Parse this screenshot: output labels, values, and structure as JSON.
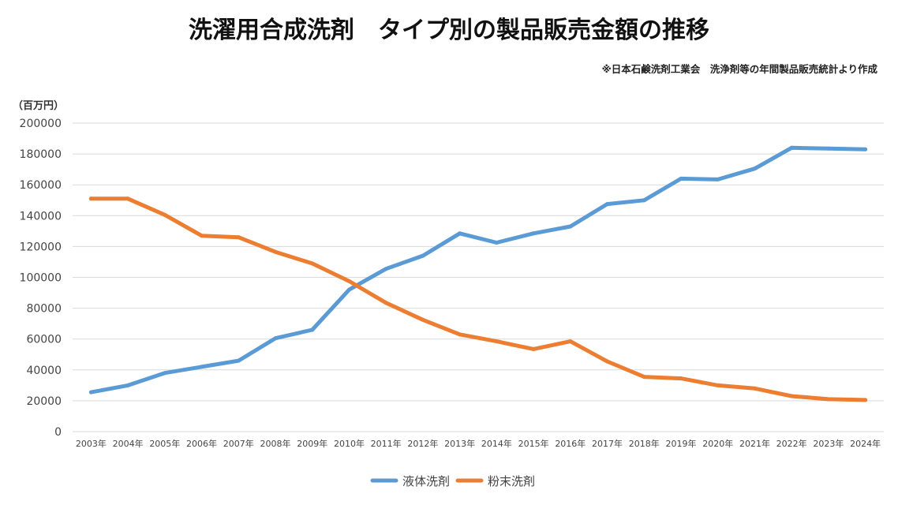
{
  "chart_data": {
    "type": "line",
    "title": "洗濯用合成洗剤　タイプ別の製品販売金額の推移",
    "source": "※日本石鹸洗剤工業会　洗浄剤等の年間製品販売統計より作成",
    "ylabel": "（百万円）",
    "xlabel": "",
    "ylim": [
      0,
      200000
    ],
    "ytick_step": 20000,
    "yticks": [
      "0",
      "20000",
      "40000",
      "60000",
      "80000",
      "100000",
      "120000",
      "140000",
      "160000",
      "180000",
      "200000"
    ],
    "grid": true,
    "legend_position": "bottom",
    "categories": [
      "2003年",
      "2004年",
      "2005年",
      "2006年",
      "2007年",
      "2008年",
      "2009年",
      "2010年",
      "2011年",
      "2012年",
      "2013年",
      "2014年",
      "2015年",
      "2016年",
      "2017年",
      "2018年",
      "2019年",
      "2020年",
      "2021年",
      "2022年",
      "2023年",
      "2024年"
    ],
    "series": [
      {
        "name": "液体洗剤",
        "color": "#5b9bd5",
        "values": [
          25500,
          30000,
          38000,
          42000,
          46000,
          60500,
          66000,
          92000,
          105500,
          114000,
          128500,
          122500,
          128500,
          133000,
          147500,
          150000,
          164000,
          163500,
          170500,
          184000,
          183500,
          183000
        ]
      },
      {
        "name": "粉末洗剤",
        "color": "#ed7d31",
        "values": [
          151000,
          151000,
          140500,
          127000,
          126000,
          116500,
          109000,
          97500,
          83500,
          72500,
          63000,
          58500,
          53500,
          58500,
          45500,
          35500,
          34500,
          30000,
          28000,
          23000,
          21000,
          20500
        ]
      }
    ]
  }
}
